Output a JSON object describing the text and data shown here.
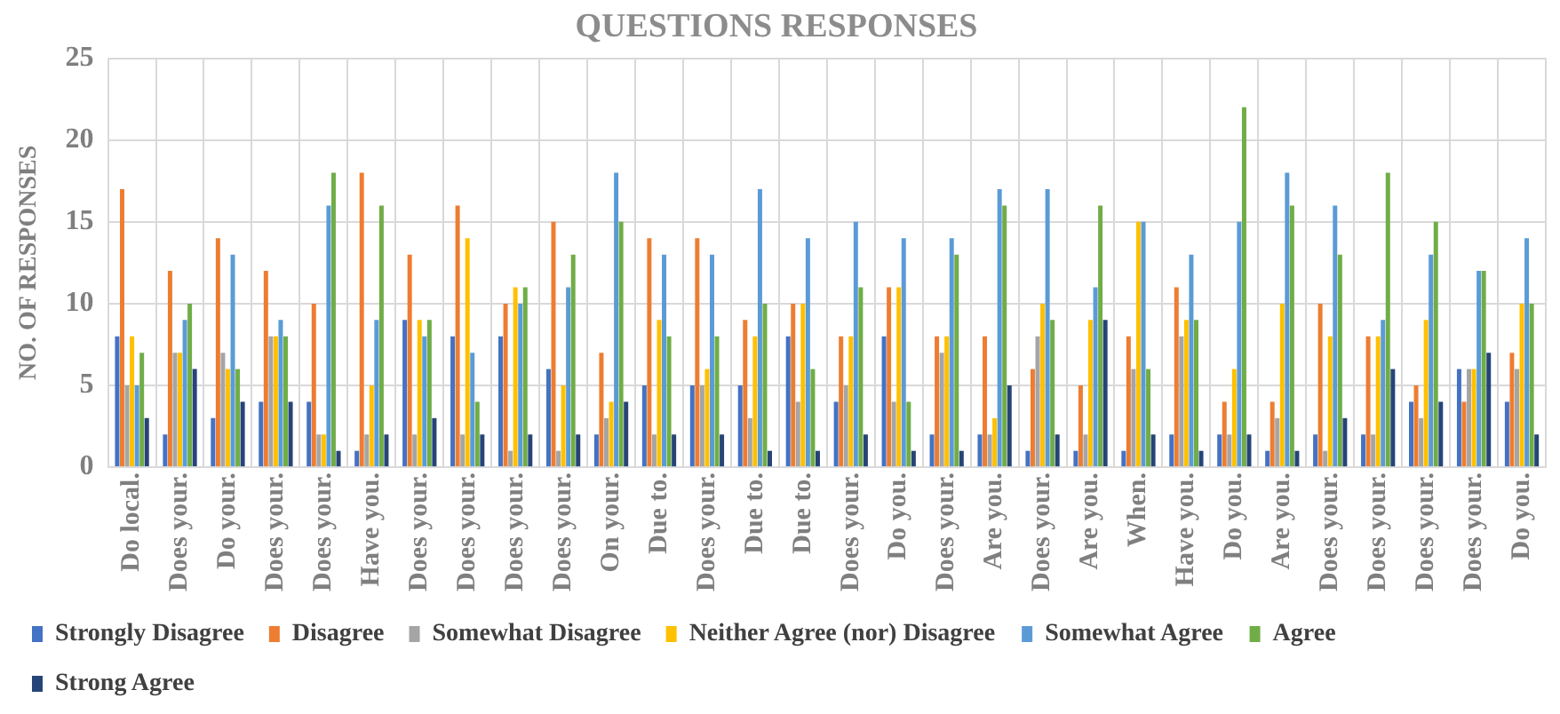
{
  "chart_data": {
    "type": "bar",
    "title": "QUESTIONS RESPONSES",
    "ylabel": "NO. OF RESPONSES",
    "categories": [
      "Do local.",
      "Does your.",
      "Do your.",
      "Does your.",
      "Does your.",
      "Have you.",
      "Does your.",
      "Does your.",
      "Does your.",
      "Does your.",
      "On your.",
      "Due to.",
      "Does your.",
      "Due to.",
      "Due to.",
      "Does your.",
      "Do you.",
      "Does your.",
      "Are you.",
      "Does your.",
      "Are you.",
      "When.",
      "Have you.",
      "Do you.",
      "Are you.",
      "Does your.",
      "Does your.",
      "Does your.",
      "Does your.",
      "Do you."
    ],
    "series": [
      {
        "name": "Strongly Disagree",
        "color": "#4472c4",
        "values": [
          8,
          2,
          3,
          4,
          4,
          1,
          9,
          8,
          8,
          6,
          2,
          5,
          5,
          5,
          8,
          4,
          8,
          2,
          2,
          1,
          1,
          1,
          2,
          2,
          1,
          2,
          2,
          4,
          6,
          4
        ]
      },
      {
        "name": "Disagree",
        "color": "#ed7d31",
        "values": [
          17,
          12,
          14,
          12,
          10,
          18,
          13,
          16,
          10,
          15,
          7,
          14,
          14,
          9,
          10,
          8,
          11,
          8,
          8,
          6,
          5,
          8,
          11,
          4,
          4,
          10,
          8,
          5,
          4,
          7
        ]
      },
      {
        "name": "Somewhat Disagree",
        "color": "#a5a5a5",
        "values": [
          5,
          7,
          7,
          8,
          2,
          2,
          2,
          2,
          1,
          1,
          3,
          2,
          5,
          3,
          4,
          5,
          4,
          7,
          2,
          8,
          2,
          6,
          8,
          2,
          3,
          1,
          2,
          3,
          6,
          6
        ]
      },
      {
        "name": "Neither Agree (nor) Disagree",
        "color": "#ffc000",
        "values": [
          8,
          7,
          6,
          8,
          2,
          5,
          9,
          14,
          11,
          5,
          4,
          9,
          6,
          8,
          10,
          8,
          11,
          8,
          3,
          10,
          9,
          15,
          9,
          6,
          10,
          8,
          8,
          9,
          6,
          10
        ]
      },
      {
        "name": "Somewhat Agree",
        "color": "#5b9bd5",
        "values": [
          5,
          9,
          13,
          9,
          16,
          9,
          8,
          7,
          10,
          11,
          18,
          13,
          13,
          17,
          14,
          15,
          14,
          14,
          17,
          17,
          11,
          15,
          13,
          15,
          18,
          16,
          9,
          13,
          12,
          14
        ]
      },
      {
        "name": "Agree",
        "color": "#70ad47",
        "values": [
          7,
          10,
          6,
          8,
          18,
          16,
          9,
          4,
          11,
          13,
          15,
          8,
          8,
          10,
          6,
          11,
          4,
          13,
          16,
          9,
          16,
          6,
          9,
          22,
          16,
          13,
          18,
          15,
          12,
          10
        ]
      },
      {
        "name": "Strong Agree",
        "color": "#264478",
        "values": [
          3,
          6,
          4,
          4,
          1,
          2,
          3,
          2,
          2,
          2,
          4,
          2,
          2,
          1,
          1,
          2,
          1,
          1,
          5,
          2,
          9,
          2,
          1,
          2,
          1,
          3,
          6,
          4,
          7,
          2
        ]
      }
    ],
    "ylim": [
      0,
      25
    ],
    "yticks": [
      0,
      5,
      10,
      15,
      20,
      25
    ],
    "grid": true,
    "legend": "bottom"
  }
}
